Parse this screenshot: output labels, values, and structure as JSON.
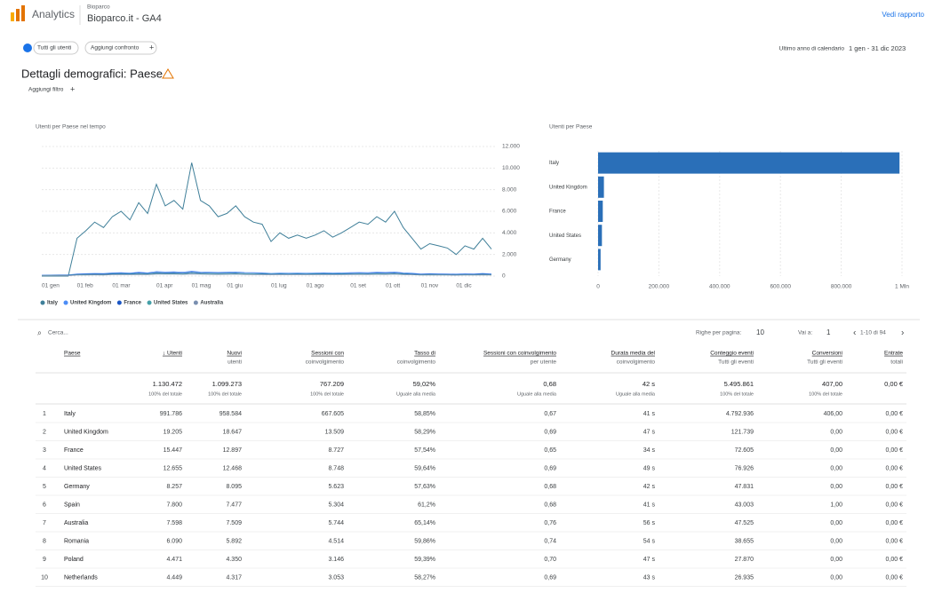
{
  "header": {
    "app": "Analytics",
    "account": "Bioparco",
    "property": "Bioparco.it - GA4",
    "link": "Vedi rapporto"
  },
  "toolbar": {
    "segment": "Tutti gli utenti",
    "compare": "Aggiungi confronto",
    "period": "Ultimo anno di calendario",
    "dates": "1 gen - 31 dic 2023"
  },
  "report": {
    "title": "Dettagli demografici: Paese",
    "filter": "Aggiungi filtro"
  },
  "chart_data": [
    {
      "type": "line",
      "title": "Utenti per Paese nel tempo",
      "categories": [
        "01 gen",
        null,
        null,
        null,
        "01 feb",
        null,
        null,
        null,
        "01 mar",
        null,
        null,
        null,
        null,
        "01 apr",
        null,
        null,
        null,
        "01 mag",
        null,
        null,
        null,
        "01 giu",
        null,
        null,
        null,
        null,
        "01 lug",
        null,
        null,
        null,
        "01 ago",
        null,
        null,
        null,
        null,
        "01 set",
        null,
        null,
        null,
        "01 ott",
        null,
        null,
        null,
        "01 nov",
        null,
        null,
        null,
        "01 dic",
        null,
        null,
        null,
        null
      ],
      "series": [
        {
          "name": "Italy",
          "color": "#3f7f99",
          "values": [
            0,
            0,
            0,
            0,
            3500,
            4200,
            5000,
            4500,
            5500,
            6000,
            5200,
            6800,
            5800,
            8500,
            6500,
            7000,
            6200,
            10500,
            7000,
            6500,
            5500,
            5800,
            6500,
            5500,
            5000,
            4800,
            3200,
            4000,
            3500,
            3800,
            3500,
            3800,
            4200,
            3600,
            4000,
            4500,
            5000,
            4800,
            5500,
            5000,
            6000,
            4500,
            3500,
            2500,
            3000,
            2800,
            2600,
            2000,
            2800,
            2500,
            3500,
            2500
          ]
        },
        {
          "name": "United Kingdom",
          "color": "#4c8df6",
          "values": [
            80,
            90,
            100,
            110,
            200,
            220,
            250,
            240,
            300,
            320,
            280,
            350,
            300,
            420,
            380,
            400,
            360,
            450,
            380,
            360,
            340,
            350,
            380,
            330,
            320,
            300,
            250,
            280,
            260,
            270,
            260,
            280,
            300,
            270,
            290,
            310,
            330,
            320,
            350,
            340,
            380,
            300,
            260,
            200,
            220,
            210,
            200,
            180,
            210,
            190,
            250,
            190
          ]
        },
        {
          "name": "France",
          "color": "#1a56c4",
          "values": [
            60,
            70,
            80,
            90,
            150,
            170,
            190,
            180,
            230,
            250,
            220,
            270,
            240,
            330,
            300,
            310,
            280,
            350,
            300,
            280,
            260,
            270,
            290,
            250,
            240,
            230,
            190,
            210,
            200,
            210,
            200,
            220,
            230,
            210,
            220,
            240,
            250,
            240,
            270,
            260,
            290,
            230,
            200,
            150,
            170,
            160,
            150,
            140,
            160,
            150,
            190,
            150
          ]
        },
        {
          "name": "United States",
          "color": "#45a0a8",
          "values": [
            50,
            55,
            60,
            70,
            120,
            140,
            150,
            140,
            180,
            200,
            180,
            210,
            190,
            260,
            240,
            250,
            220,
            280,
            240,
            230,
            220,
            230,
            250,
            220,
            210,
            200,
            170,
            180,
            175,
            180,
            175,
            190,
            200,
            180,
            190,
            200,
            210,
            200,
            220,
            210,
            240,
            190,
            160,
            120,
            140,
            130,
            120,
            110,
            130,
            120,
            150,
            120
          ]
        },
        {
          "name": "Australia",
          "color": "#7a8fb0",
          "values": [
            30,
            35,
            40,
            45,
            90,
            100,
            110,
            100,
            130,
            140,
            130,
            150,
            140,
            180,
            170,
            175,
            160,
            190,
            170,
            160,
            150,
            160,
            170,
            150,
            140,
            140,
            120,
            130,
            125,
            130,
            125,
            135,
            140,
            130,
            135,
            145,
            150,
            145,
            160,
            150,
            170,
            140,
            120,
            90,
            100,
            95,
            90,
            85,
            95,
            90,
            110,
            90
          ]
        }
      ],
      "ylim": [
        0,
        12000
      ],
      "yticks": [
        0,
        {
          "value": 2000,
          "label": "2.000"
        },
        {
          "value": 4000,
          "label": "4.000"
        },
        {
          "value": 6000,
          "label": "6.000"
        },
        {
          "value": 8000,
          "label": "8.000"
        },
        {
          "value": 10000,
          "label": "10.000"
        },
        {
          "value": 12000,
          "label": "12.000"
        }
      ],
      "grid": true
    },
    {
      "type": "hbar",
      "title": "Utenti per Paese",
      "categories": [
        "Italy",
        "United Kingdom",
        "France",
        "United States",
        "Germany"
      ],
      "values": [
        991786,
        19205,
        15447,
        12655,
        8257
      ],
      "color": "#2a6fb8",
      "xlim": [
        0,
        1000000
      ],
      "xticks": [
        0,
        {
          "value": 200000,
          "label": "200.000"
        },
        {
          "value": 400000,
          "label": "400.000"
        },
        {
          "value": 600000,
          "label": "600.000"
        },
        {
          "value": 800000,
          "label": "800.000"
        },
        {
          "value": 1000000,
          "label": "1 Mln"
        }
      ],
      "grid": true
    }
  ],
  "table": {
    "search": "Cerca...",
    "rows_label": "Righe per pagina:",
    "rows_value": "10",
    "goto_label": "Vai a:",
    "goto_value": "1",
    "range": "1-10 di 94",
    "columns": [
      [
        "Paese"
      ],
      [
        "↓ Utenti"
      ],
      [
        "Nuovi",
        "utenti"
      ],
      [
        "Sessioni con",
        "coinvolgimento"
      ],
      [
        "Tasso di",
        "coinvolgimento"
      ],
      [
        "Sessioni con coinvolgimento",
        "per utente"
      ],
      [
        "Durata media del",
        "coinvolgimento"
      ],
      [
        "Conteggio eventi",
        "Tutti gli eventi"
      ],
      [
        "Conversioni",
        "Tutti gli eventi"
      ],
      [
        "Entrate",
        "totali"
      ]
    ],
    "totals": [
      [
        "1.130.472",
        "100% del totale"
      ],
      [
        "1.099.273",
        "100% del totale"
      ],
      [
        "767.209",
        "100% del totale"
      ],
      [
        "59,02%",
        "Uguale alla media"
      ],
      [
        "0,68",
        "Uguale alla media"
      ],
      [
        "42 s",
        "Uguale alla media"
      ],
      [
        "5.495.861",
        "100% del totale"
      ],
      [
        "407,00",
        "100% del totale"
      ],
      [
        "0,00 €"
      ]
    ],
    "rows": [
      [
        "1",
        "Italy",
        "991.786",
        "958.584",
        "667.605",
        "58,85%",
        "0,67",
        "41 s",
        "4.792.936",
        "406,00",
        "0,00 €"
      ],
      [
        "2",
        "United Kingdom",
        "19.205",
        "18.647",
        "13.509",
        "58,29%",
        "0,69",
        "47 s",
        "121.739",
        "0,00",
        "0,00 €"
      ],
      [
        "3",
        "France",
        "15.447",
        "12.897",
        "8.727",
        "57,54%",
        "0,65",
        "34 s",
        "72.605",
        "0,00",
        "0,00 €"
      ],
      [
        "4",
        "United States",
        "12.655",
        "12.468",
        "8.748",
        "59,64%",
        "0,69",
        "49 s",
        "76.926",
        "0,00",
        "0,00 €"
      ],
      [
        "5",
        "Germany",
        "8.257",
        "8.095",
        "5.623",
        "57,63%",
        "0,68",
        "42 s",
        "47.831",
        "0,00",
        "0,00 €"
      ],
      [
        "6",
        "Spain",
        "7.800",
        "7.477",
        "5.304",
        "61,2%",
        "0,68",
        "41 s",
        "43.003",
        "1,00",
        "0,00 €"
      ],
      [
        "7",
        "Australia",
        "7.598",
        "7.509",
        "5.744",
        "65,14%",
        "0,76",
        "56 s",
        "47.525",
        "0,00",
        "0,00 €"
      ],
      [
        "8",
        "Romania",
        "6.090",
        "5.892",
        "4.514",
        "59,86%",
        "0,74",
        "54 s",
        "38.655",
        "0,00",
        "0,00 €"
      ],
      [
        "9",
        "Poland",
        "4.471",
        "4.350",
        "3.146",
        "59,39%",
        "0,70",
        "47 s",
        "27.870",
        "0,00",
        "0,00 €"
      ],
      [
        "10",
        "Netherlands",
        "4.449",
        "4.317",
        "3.053",
        "58,27%",
        "0,69",
        "43 s",
        "26.935",
        "0,00",
        "0,00 €"
      ]
    ]
  }
}
